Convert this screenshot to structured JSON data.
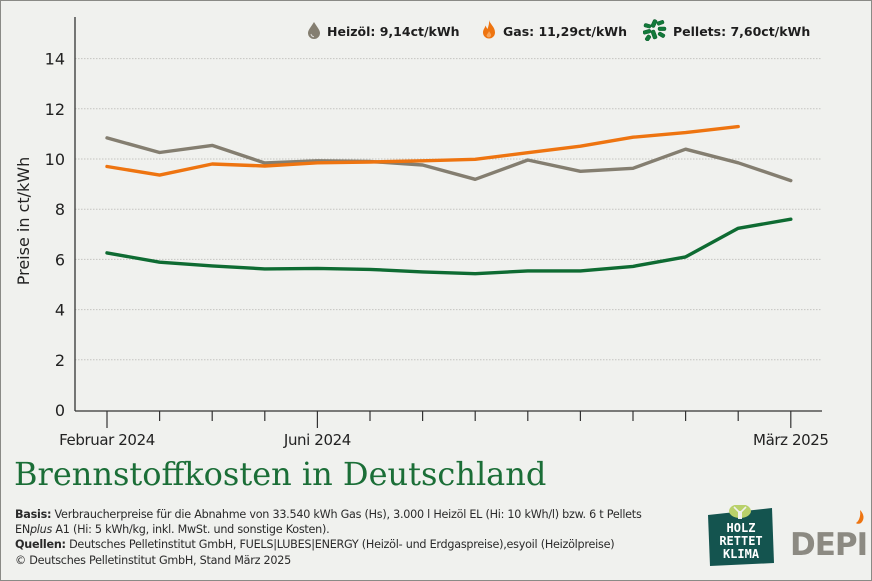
{
  "chart_data": {
    "type": "line",
    "title": "Brennstoffkosten in Deutschland",
    "xlabel": "",
    "ylabel": "Preise in ct/kWh",
    "ylim": [
      0,
      15
    ],
    "yticks": [
      0,
      2,
      4,
      6,
      8,
      10,
      12,
      14
    ],
    "grid": true,
    "legend_position": "top",
    "x": [
      "2024-02",
      "2024-03",
      "2024-04",
      "2024-05",
      "2024-06",
      "2024-07",
      "2024-08",
      "2024-09",
      "2024-10",
      "2024-11",
      "2024-12",
      "2025-01",
      "2025-02",
      "2025-03"
    ],
    "xtick_labels": [
      {
        "index": 0,
        "label": "Februar 2024"
      },
      {
        "index": 4,
        "label": "Juni 2024"
      },
      {
        "index": 13,
        "label": "März 2025"
      }
    ],
    "series": [
      {
        "name": "Heizöl",
        "legend_label": "Heizöl: 9,14ct/kWh",
        "color": "#847e70",
        "icon": "oil-drop-icon",
        "values": [
          10.84,
          10.26,
          10.54,
          9.84,
          9.93,
          9.9,
          9.76,
          9.19,
          9.96,
          9.51,
          9.63,
          10.39,
          9.85,
          9.14
        ]
      },
      {
        "name": "Gas",
        "legend_label": "Gas: 11,29ct/kWh",
        "color": "#ee7410",
        "icon": "flame-icon",
        "values": [
          9.7,
          9.36,
          9.8,
          9.72,
          9.85,
          9.88,
          9.93,
          9.99,
          10.25,
          10.51,
          10.87,
          11.05,
          11.29,
          null
        ]
      },
      {
        "name": "Pellets",
        "legend_label": "Pellets: 7,60ct/kWh",
        "color": "#0e6b32",
        "icon": "pellets-icon",
        "values": [
          6.26,
          5.89,
          5.74,
          5.62,
          5.64,
          5.6,
          5.5,
          5.43,
          5.54,
          5.54,
          5.72,
          6.1,
          7.24,
          7.6
        ]
      }
    ]
  },
  "legend": {
    "heizoel": "Heizöl: 9,14ct/kWh",
    "gas": "Gas: 11,29ct/kWh",
    "pellets": "Pellets: 7,60ct/kWh"
  },
  "notes": {
    "basis_label": "Basis:",
    "basis_text_1": " Verbraucherpreise für die Abnahme von 33.540 kWh Gas (Hs), 3.000 l Heizöl EL (Hi: 10 kWh/l) bzw. 6 t Pellets",
    "basis_text_2_prefix": "EN",
    "basis_text_2_italic": "plus",
    "basis_text_2_suffix": " A1 (Hi: 5 kWh/kg, inkl. MwSt. und sonstige Kosten).",
    "sources_label": "Quellen:",
    "sources_text": " Deutsches Pelletinstitut GmbH, FUELS|LUBES|ENERGY (Heizöl- und Erdgaspreise),esyoil (Heizölpreise)",
    "copyright": "© Deutsches Pelletinstitut GmbH, Stand März 2025"
  },
  "logos": {
    "hrk_line1": "HOLZ",
    "hrk_line2": "RETTET",
    "hrk_line3": "KLIMA",
    "depi": "DEPI"
  },
  "colors": {
    "title": "#1b6e37",
    "background": "#f0f1ee",
    "hrk_bg": "#14544f",
    "hrk_tree": "#b9d16a",
    "depi_text": "#8c8a82",
    "depi_flame": "#ee7410"
  }
}
